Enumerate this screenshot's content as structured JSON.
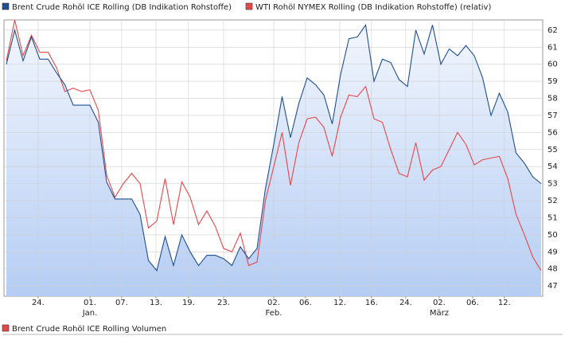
{
  "chart_data": {
    "type": "line",
    "x": [
      0,
      1,
      2,
      3,
      4,
      5,
      6,
      7,
      8,
      9,
      10,
      11,
      12,
      13,
      14,
      15,
      16,
      17,
      18,
      19,
      20,
      21,
      22,
      23,
      24,
      25,
      26,
      27,
      28,
      29,
      30,
      31,
      32,
      33,
      34,
      35,
      36,
      37,
      38,
      39,
      40,
      41,
      42,
      43,
      44,
      45,
      46,
      47,
      48,
      49,
      50,
      51,
      52,
      53,
      54,
      55,
      56,
      57,
      58,
      59,
      60,
      61,
      62,
      63,
      64
    ],
    "series": [
      {
        "name": "Brent Crude Rohöl ICE Rolling (DB Indikation Rohstoffe)",
        "color": "#1f4f8f",
        "area": true,
        "values": [
          60.0,
          62.0,
          60.2,
          61.6,
          60.3,
          60.3,
          59.5,
          58.8,
          57.6,
          57.6,
          57.6,
          56.6,
          53.1,
          52.1,
          52.1,
          52.1,
          51.2,
          48.5,
          47.9,
          49.9,
          48.2,
          50.0,
          49.0,
          48.2,
          48.8,
          48.8,
          48.6,
          48.2,
          49.3,
          48.6,
          49.2,
          52.7,
          55.3,
          58.1,
          55.7,
          57.7,
          59.2,
          58.8,
          58.2,
          56.5,
          59.4,
          61.5,
          61.6,
          62.3,
          59.0,
          60.3,
          60.1,
          59.1,
          58.7,
          62.0,
          60.6,
          62.3,
          60.0,
          60.9,
          60.5,
          61.1,
          60.5,
          59.2,
          57.0,
          58.3,
          57.2,
          54.8,
          54.2,
          53.4,
          53.0
        ]
      },
      {
        "name": "WTI Rohöl NYMEX Rolling (DB Indikation Rohstoffe) (relativ)",
        "color": "#e8474a",
        "area": false,
        "values": [
          60.2,
          62.6,
          60.5,
          61.7,
          60.7,
          60.7,
          59.8,
          58.4,
          58.6,
          58.4,
          58.5,
          57.3,
          53.5,
          52.2,
          53.0,
          53.6,
          53.0,
          50.4,
          50.8,
          53.3,
          50.6,
          53.1,
          52.2,
          50.6,
          51.4,
          50.5,
          49.2,
          49.0,
          50.1,
          48.2,
          48.4,
          52.0,
          54.0,
          56.0,
          52.9,
          55.4,
          56.8,
          56.9,
          56.3,
          54.6,
          56.9,
          58.2,
          58.1,
          58.7,
          56.8,
          56.6,
          55.0,
          53.6,
          53.4,
          55.4,
          53.2,
          53.8,
          54.0,
          55.0,
          56.0,
          55.3,
          54.1,
          54.4,
          54.5,
          54.6,
          53.3,
          51.2,
          50.0,
          48.7,
          47.9
        ]
      }
    ],
    "xlim": [
      0,
      64
    ],
    "xticks": [
      {
        "value": 3.8,
        "label": "24."
      },
      {
        "value": 10.0,
        "label": "01."
      },
      {
        "value": 13.8,
        "label": "07."
      },
      {
        "value": 17.9,
        "label": "13."
      },
      {
        "value": 21.8,
        "label": "19."
      },
      {
        "value": 26.0,
        "label": "23."
      },
      {
        "value": 32.0,
        "label": "02."
      },
      {
        "value": 35.8,
        "label": "06."
      },
      {
        "value": 39.9,
        "label": "12."
      },
      {
        "value": 43.7,
        "label": "16."
      },
      {
        "value": 47.8,
        "label": "24."
      },
      {
        "value": 51.8,
        "label": "02."
      },
      {
        "value": 55.8,
        "label": "06."
      },
      {
        "value": 59.6,
        "label": "12."
      }
    ],
    "month_labels": [
      {
        "value": 10.0,
        "label": "Jan."
      },
      {
        "value": 32.0,
        "label": "Feb."
      },
      {
        "value": 51.8,
        "label": "März"
      }
    ],
    "ylim": [
      46.4,
      62.6
    ],
    "yticks": [
      47,
      48,
      49,
      50,
      51,
      52,
      53,
      54,
      55,
      56,
      57,
      58,
      59,
      60,
      61,
      62
    ],
    "grid": true,
    "volume_legend": {
      "name": "Brent Crude Rohöl ICE Rolling Volumen",
      "color": "#e8474a"
    }
  }
}
